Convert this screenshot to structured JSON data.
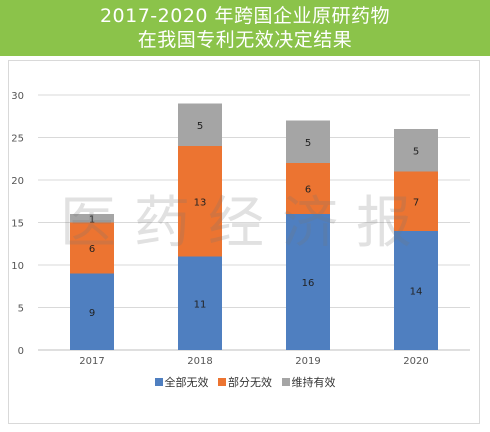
{
  "banner": {
    "line1": "2017-2020 年跨国企业原研药物",
    "line2": "在我国专利无效决定结果"
  },
  "watermark": "医药经济报",
  "chart_data": {
    "type": "bar",
    "stacked": true,
    "categories": [
      "2017",
      "2018",
      "2019",
      "2020"
    ],
    "series": [
      {
        "name": "全部无效",
        "values": [
          9,
          11,
          16,
          14
        ],
        "color": "#4f7fc0"
      },
      {
        "name": "部分无效",
        "values": [
          6,
          13,
          6,
          7
        ],
        "color": "#ec7431"
      },
      {
        "name": "维持有效",
        "values": [
          1,
          5,
          5,
          5
        ],
        "color": "#a5a5a5"
      }
    ],
    "ylim": [
      0,
      30
    ],
    "yticks": [
      0,
      5,
      10,
      15,
      20,
      25,
      30
    ],
    "grid": true,
    "legend": "bottom"
  }
}
